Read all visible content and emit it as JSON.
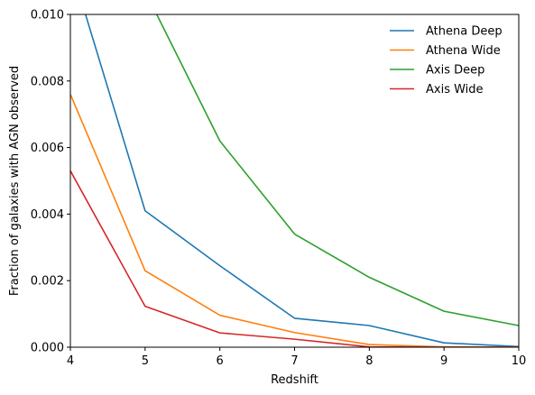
{
  "chart_data": {
    "type": "line",
    "title": "",
    "xlabel": "Redshift",
    "ylabel": "Fraction of galaxies with AGN observed",
    "xlim": [
      4,
      10
    ],
    "ylim": [
      0,
      0.01
    ],
    "xticks": [
      "4",
      "5",
      "6",
      "7",
      "8",
      "9",
      "10"
    ],
    "yticks": [
      "0.000",
      "0.002",
      "0.004",
      "0.006",
      "0.008",
      "0.010"
    ],
    "grid": false,
    "legend_position": "top-right",
    "x": [
      4,
      5,
      6,
      7,
      8,
      9,
      10
    ],
    "series": [
      {
        "name": "Athena Deep",
        "color": "#1f77b4",
        "values": [
          0.0115,
          0.0041,
          0.00245,
          0.00087,
          0.00065,
          0.00013,
          2e-05
        ]
      },
      {
        "name": "Athena Wide",
        "color": "#ff7f0e",
        "values": [
          0.0076,
          0.0023,
          0.00096,
          0.00044,
          8e-05,
          1e-05,
          0.0
        ]
      },
      {
        "name": "Axis Deep",
        "color": "#2ca02c",
        "values": [
          0.018,
          0.0107,
          0.0062,
          0.0034,
          0.0021,
          0.00108,
          0.00065
        ]
      },
      {
        "name": "Axis Wide",
        "color": "#d62728",
        "values": [
          0.0053,
          0.00123,
          0.00043,
          0.00024,
          1e-05,
          0.0,
          0.0
        ]
      }
    ]
  }
}
